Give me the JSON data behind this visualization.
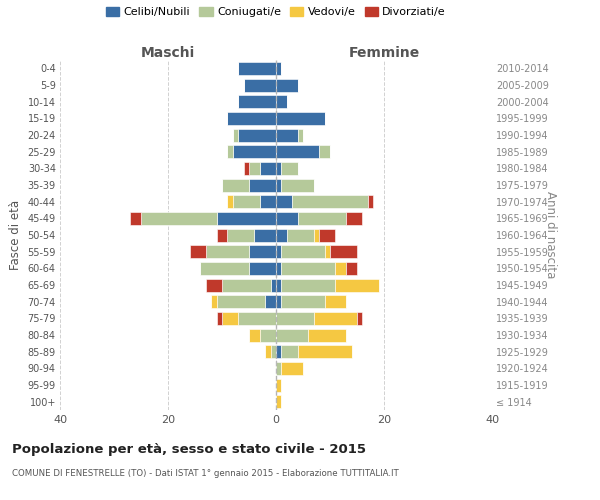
{
  "age_groups": [
    "100+",
    "95-99",
    "90-94",
    "85-89",
    "80-84",
    "75-79",
    "70-74",
    "65-69",
    "60-64",
    "55-59",
    "50-54",
    "45-49",
    "40-44",
    "35-39",
    "30-34",
    "25-29",
    "20-24",
    "15-19",
    "10-14",
    "5-9",
    "0-4"
  ],
  "birth_years": [
    "≤ 1914",
    "1915-1919",
    "1920-1924",
    "1925-1929",
    "1930-1934",
    "1935-1939",
    "1940-1944",
    "1945-1949",
    "1950-1954",
    "1955-1959",
    "1960-1964",
    "1965-1969",
    "1970-1974",
    "1975-1979",
    "1980-1984",
    "1985-1989",
    "1990-1994",
    "1995-1999",
    "2000-2004",
    "2005-2009",
    "2010-2014"
  ],
  "maschi": {
    "celibi": [
      0,
      0,
      0,
      0,
      0,
      0,
      2,
      1,
      5,
      5,
      4,
      11,
      3,
      5,
      3,
      8,
      7,
      9,
      7,
      6,
      7
    ],
    "coniugati": [
      0,
      0,
      0,
      1,
      3,
      7,
      9,
      9,
      9,
      8,
      5,
      14,
      5,
      5,
      2,
      1,
      1,
      0,
      0,
      0,
      0
    ],
    "vedovi": [
      0,
      0,
      0,
      1,
      2,
      3,
      1,
      0,
      0,
      0,
      0,
      0,
      1,
      0,
      0,
      0,
      0,
      0,
      0,
      0,
      0
    ],
    "divorziati": [
      0,
      0,
      0,
      0,
      0,
      1,
      0,
      3,
      0,
      3,
      2,
      2,
      0,
      0,
      1,
      0,
      0,
      0,
      0,
      0,
      0
    ]
  },
  "femmine": {
    "nubili": [
      0,
      0,
      0,
      1,
      0,
      0,
      1,
      1,
      1,
      1,
      2,
      4,
      3,
      1,
      1,
      8,
      4,
      9,
      2,
      4,
      1
    ],
    "coniugate": [
      0,
      0,
      1,
      3,
      6,
      7,
      8,
      10,
      10,
      8,
      5,
      9,
      14,
      6,
      3,
      2,
      1,
      0,
      0,
      0,
      0
    ],
    "vedove": [
      1,
      1,
      4,
      10,
      7,
      8,
      4,
      8,
      2,
      1,
      1,
      0,
      0,
      0,
      0,
      0,
      0,
      0,
      0,
      0,
      0
    ],
    "divorziate": [
      0,
      0,
      0,
      0,
      0,
      1,
      0,
      0,
      2,
      5,
      3,
      3,
      1,
      0,
      0,
      0,
      0,
      0,
      0,
      0,
      0
    ]
  },
  "colors": {
    "celibi": "#3a6ea5",
    "coniugati": "#b5c99a",
    "vedovi": "#f5c842",
    "divorziati": "#c0392b"
  },
  "title": "Popolazione per età, sesso e stato civile - 2015",
  "subtitle": "COMUNE DI FENESTRELLE (TO) - Dati ISTAT 1° gennaio 2015 - Elaborazione TUTTITALIA.IT",
  "ylabel_left": "Fasce di età",
  "ylabel_right": "Anni di nascita",
  "xlim": 40,
  "bg_color": "#ffffff",
  "grid_color": "#cccccc",
  "legend_labels": [
    "Celibi/Nubili",
    "Coniugati/e",
    "Vedovi/e",
    "Divorziati/e"
  ]
}
